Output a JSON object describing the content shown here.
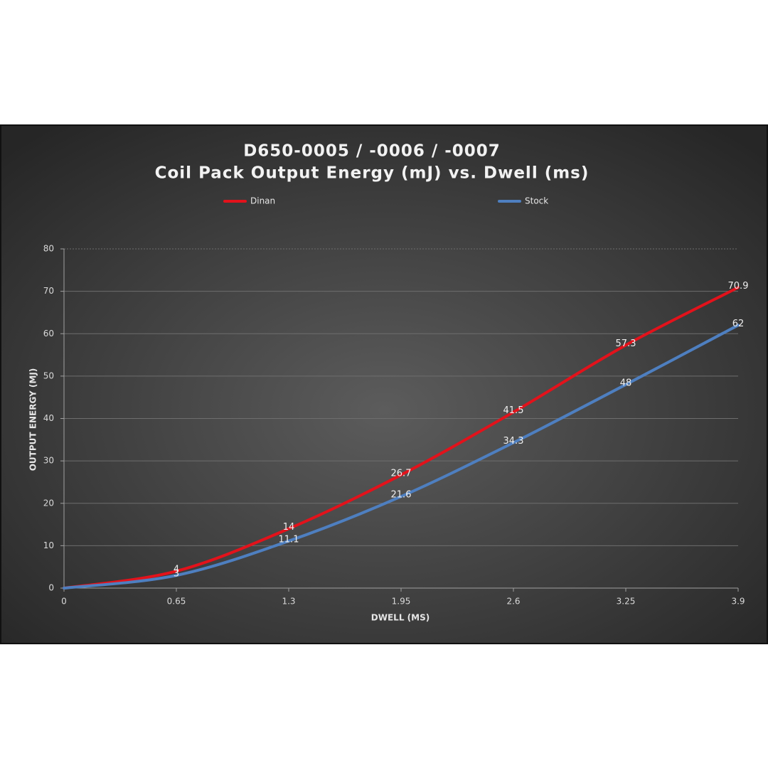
{
  "chart_data": {
    "type": "line",
    "title": "D650-0005 / -0006 / -0007",
    "subtitle": "Coil Pack Output Energy (mJ) vs. Dwell (ms)",
    "x_label": "DWELL (MS)",
    "y_label": "OUTPUT ENERGY (MJ)",
    "x": [
      0,
      0.65,
      1.3,
      1.95,
      2.6,
      3.25,
      3.9
    ],
    "series": [
      {
        "name": "Dinan",
        "color": "#e3121b",
        "values": [
          0,
          4,
          14,
          26.7,
          41.5,
          57.3,
          70.9
        ],
        "value_labels": [
          null,
          "4",
          "14",
          "26.7",
          "41.5",
          "57.3",
          "70.9"
        ]
      },
      {
        "name": "Stock",
        "color": "#4e7fc0",
        "values": [
          0,
          3,
          11.1,
          21.6,
          34.3,
          48,
          62
        ],
        "value_labels": [
          null,
          "3",
          "11.1",
          "21.6",
          "34.3",
          "48",
          "62"
        ]
      }
    ],
    "xlim": [
      0,
      3.9
    ],
    "xticks": [
      0,
      0.65,
      1.3,
      1.95,
      2.6,
      3.25,
      3.9
    ],
    "ylim": [
      0,
      80
    ],
    "yticks": [
      0,
      10,
      20,
      30,
      40,
      50,
      60,
      70,
      80
    ],
    "grid": true,
    "legend": "top"
  }
}
